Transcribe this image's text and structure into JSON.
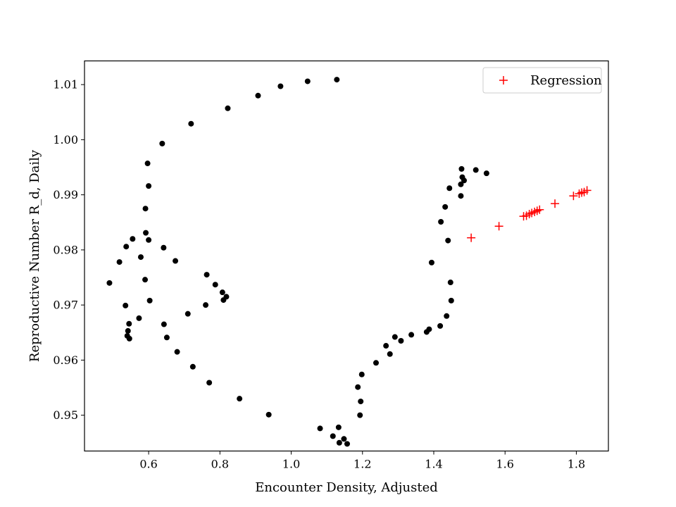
{
  "chart_data": {
    "type": "scatter",
    "title": "",
    "xlabel": "Encounter Density, Adjusted",
    "ylabel": "Reproductive Number R_d, Daily",
    "xlim": [
      0.42,
      1.89
    ],
    "ylim": [
      0.9435,
      1.0143
    ],
    "xticks": [
      0.6,
      0.8,
      1.0,
      1.2,
      1.4,
      1.6,
      1.8
    ],
    "xtick_labels": [
      "0.6",
      "0.8",
      "1.0",
      "1.2",
      "1.4",
      "1.6",
      "1.8"
    ],
    "yticks": [
      0.95,
      0.96,
      0.97,
      0.98,
      0.99,
      1.0,
      1.01
    ],
    "ytick_labels": [
      "0.95",
      "0.96",
      "0.97",
      "0.98",
      "0.99",
      "1.00",
      "1.01"
    ],
    "grid": false,
    "legend_position": "top-right",
    "series": [
      {
        "name": "",
        "marker": "dot",
        "color": "#000000",
        "points": [
          [
            0.49,
            0.974
          ],
          [
            0.518,
            0.9778
          ],
          [
            0.535,
            0.9699
          ],
          [
            0.537,
            0.9806
          ],
          [
            0.54,
            0.9644
          ],
          [
            0.542,
            0.9653
          ],
          [
            0.545,
            0.9666
          ],
          [
            0.546,
            0.9639
          ],
          [
            0.555,
            0.982
          ],
          [
            0.573,
            0.9676
          ],
          [
            0.578,
            0.9787
          ],
          [
            0.59,
            0.9746
          ],
          [
            0.591,
            0.9875
          ],
          [
            0.592,
            0.9831
          ],
          [
            0.597,
            0.9957
          ],
          [
            0.6,
            0.9916
          ],
          [
            0.6,
            0.9818
          ],
          [
            0.603,
            0.9708
          ],
          [
            0.638,
            0.9993
          ],
          [
            0.642,
            0.9804
          ],
          [
            0.643,
            0.9665
          ],
          [
            0.651,
            0.9641
          ],
          [
            0.675,
            0.978
          ],
          [
            0.68,
            0.9615
          ],
          [
            0.71,
            0.9684
          ],
          [
            0.719,
            1.0029
          ],
          [
            0.724,
            0.9588
          ],
          [
            0.76,
            0.97
          ],
          [
            0.763,
            0.9755
          ],
          [
            0.77,
            0.9559
          ],
          [
            0.787,
            0.9737
          ],
          [
            0.807,
            0.9723
          ],
          [
            0.81,
            0.9709
          ],
          [
            0.818,
            0.9715
          ],
          [
            0.822,
            1.0057
          ],
          [
            0.855,
            0.953
          ],
          [
            0.907,
            1.008
          ],
          [
            0.937,
            0.9501
          ],
          [
            0.97,
            1.0097
          ],
          [
            1.046,
            1.0106
          ],
          [
            1.081,
            0.9476
          ],
          [
            1.117,
            0.9462
          ],
          [
            1.128,
            1.0109
          ],
          [
            1.133,
            0.9478
          ],
          [
            1.135,
            0.945
          ],
          [
            1.148,
            0.9457
          ],
          [
            1.157,
            0.9448
          ],
          [
            1.187,
            0.9551
          ],
          [
            1.193,
            0.95
          ],
          [
            1.195,
            0.9525
          ],
          [
            1.198,
            0.9574
          ],
          [
            1.238,
            0.9595
          ],
          [
            1.266,
            0.9626
          ],
          [
            1.277,
            0.9611
          ],
          [
            1.291,
            0.9642
          ],
          [
            1.308,
            0.9635
          ],
          [
            1.337,
            0.9646
          ],
          [
            1.38,
            0.9651
          ],
          [
            1.387,
            0.9656
          ],
          [
            1.394,
            0.9777
          ],
          [
            1.418,
            0.9662
          ],
          [
            1.42,
            0.9851
          ],
          [
            1.432,
            0.9878
          ],
          [
            1.436,
            0.968
          ],
          [
            1.44,
            0.9817
          ],
          [
            1.444,
            0.9912
          ],
          [
            1.447,
            0.9741
          ],
          [
            1.449,
            0.9708
          ],
          [
            1.476,
            0.9898
          ],
          [
            1.476,
            0.9919
          ],
          [
            1.478,
            0.9947
          ],
          [
            1.48,
            0.9932
          ],
          [
            1.485,
            0.9926
          ],
          [
            1.518,
            0.9945
          ],
          [
            1.548,
            0.9939
          ]
        ]
      },
      {
        "name": "Regression",
        "marker": "plus",
        "color": "#ff0000",
        "points": [
          [
            1.505,
            0.9822
          ],
          [
            1.583,
            0.9843
          ],
          [
            1.652,
            0.9861
          ],
          [
            1.66,
            0.9862
          ],
          [
            1.668,
            0.9865
          ],
          [
            1.675,
            0.9867
          ],
          [
            1.683,
            0.9869
          ],
          [
            1.69,
            0.9871
          ],
          [
            1.697,
            0.9873
          ],
          [
            1.74,
            0.9884
          ],
          [
            1.792,
            0.9898
          ],
          [
            1.808,
            0.9902
          ],
          [
            1.815,
            0.9904
          ],
          [
            1.822,
            0.9905
          ],
          [
            1.83,
            0.9908
          ]
        ]
      }
    ]
  }
}
